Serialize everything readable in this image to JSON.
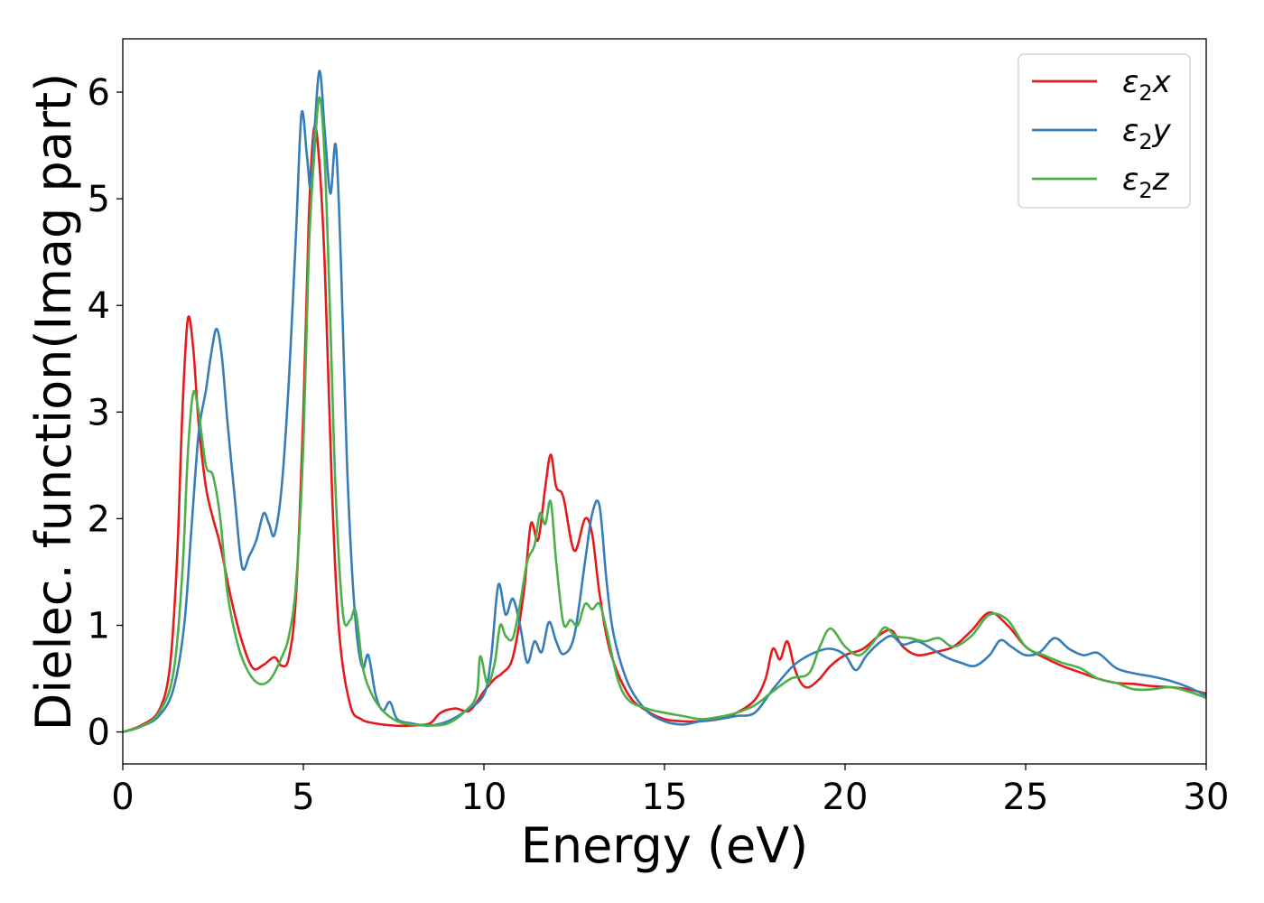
{
  "chart_data": {
    "type": "line",
    "title": "",
    "xlabel": "Energy (eV)",
    "ylabel": "Dielec. function(Imag part)",
    "xlim": [
      0,
      30
    ],
    "ylim": [
      -0.3,
      6.5
    ],
    "xticks": [
      0,
      5,
      10,
      15,
      20,
      25,
      30
    ],
    "yticks": [
      0,
      1,
      2,
      3,
      4,
      5,
      6
    ],
    "xtick_labels": [
      "0",
      "5",
      "10",
      "15",
      "20",
      "25",
      "30"
    ],
    "ytick_labels": [
      "0",
      "1",
      "2",
      "3",
      "4",
      "5",
      "6"
    ],
    "grid": false,
    "legend_position": "top-right",
    "series": [
      {
        "name": "ε2x",
        "legend_base": "ε",
        "legend_sub": "2",
        "legend_var": "x",
        "color": "#e41a1c",
        "x": [
          0,
          0.5,
          1.0,
          1.3,
          1.5,
          1.65,
          1.8,
          1.95,
          2.1,
          2.3,
          2.5,
          2.7,
          3.0,
          3.3,
          3.6,
          3.9,
          4.2,
          4.4,
          4.6,
          4.8,
          5.0,
          5.15,
          5.3,
          5.45,
          5.6,
          5.8,
          6.0,
          6.3,
          6.6,
          7.0,
          7.5,
          8.0,
          8.5,
          8.8,
          9.2,
          9.6,
          10.0,
          10.3,
          10.5,
          10.8,
          11.1,
          11.3,
          11.5,
          11.7,
          11.85,
          12.0,
          12.2,
          12.5,
          12.8,
          13.0,
          13.2,
          13.5,
          14.0,
          14.5,
          15.0,
          15.5,
          16.0,
          16.5,
          17.0,
          17.5,
          17.8,
          18.0,
          18.2,
          18.4,
          18.6,
          18.8,
          19.0,
          19.3,
          19.6,
          20.0,
          20.5,
          21.0,
          21.3,
          21.6,
          22.0,
          22.5,
          23.0,
          23.5,
          24.0,
          24.5,
          25.0,
          25.5,
          26.0,
          26.5,
          27.0,
          27.5,
          28.0,
          28.5,
          29.0,
          29.5,
          30.0
        ],
        "y": [
          0.0,
          0.06,
          0.2,
          0.6,
          1.6,
          3.0,
          3.87,
          3.6,
          2.9,
          2.3,
          2.0,
          1.75,
          1.25,
          0.85,
          0.6,
          0.63,
          0.7,
          0.62,
          0.7,
          1.3,
          3.0,
          4.8,
          5.67,
          5.3,
          4.3,
          2.2,
          0.9,
          0.25,
          0.12,
          0.08,
          0.06,
          0.06,
          0.08,
          0.18,
          0.22,
          0.2,
          0.38,
          0.5,
          0.55,
          0.7,
          1.3,
          1.95,
          1.8,
          2.3,
          2.6,
          2.3,
          2.2,
          1.7,
          2.0,
          1.85,
          1.3,
          0.75,
          0.35,
          0.2,
          0.12,
          0.1,
          0.1,
          0.12,
          0.18,
          0.3,
          0.5,
          0.78,
          0.68,
          0.85,
          0.6,
          0.45,
          0.42,
          0.5,
          0.62,
          0.72,
          0.78,
          0.92,
          0.95,
          0.8,
          0.72,
          0.75,
          0.8,
          0.95,
          1.12,
          1.0,
          0.8,
          0.7,
          0.62,
          0.56,
          0.5,
          0.46,
          0.45,
          0.43,
          0.42,
          0.4,
          0.36
        ]
      },
      {
        "name": "ε2y",
        "legend_base": "ε",
        "legend_sub": "2",
        "legend_var": "y",
        "color": "#377eb8",
        "x": [
          0,
          0.5,
          1.0,
          1.4,
          1.7,
          1.9,
          2.1,
          2.3,
          2.45,
          2.6,
          2.75,
          2.9,
          3.1,
          3.3,
          3.5,
          3.7,
          3.9,
          4.05,
          4.2,
          4.4,
          4.6,
          4.8,
          4.95,
          5.1,
          5.2,
          5.3,
          5.45,
          5.6,
          5.75,
          5.9,
          6.05,
          6.2,
          6.35,
          6.5,
          6.65,
          6.8,
          7.0,
          7.2,
          7.4,
          7.6,
          8.0,
          8.5,
          9.0,
          9.5,
          10.0,
          10.2,
          10.4,
          10.6,
          10.8,
          11.0,
          11.2,
          11.4,
          11.6,
          11.8,
          12.0,
          12.2,
          12.5,
          12.8,
          13.0,
          13.2,
          13.4,
          13.6,
          14.0,
          14.5,
          15.0,
          15.5,
          16.0,
          16.5,
          17.0,
          17.5,
          18.0,
          18.5,
          18.8,
          19.2,
          19.6,
          20.0,
          20.3,
          20.6,
          21.0,
          21.3,
          21.6,
          22.0,
          22.4,
          22.8,
          23.2,
          23.6,
          24.0,
          24.3,
          24.6,
          25.0,
          25.4,
          25.8,
          26.2,
          26.6,
          27.0,
          27.5,
          28.0,
          28.5,
          29.0,
          29.5,
          30.0
        ],
        "y": [
          0.0,
          0.05,
          0.15,
          0.4,
          1.0,
          1.9,
          2.8,
          3.2,
          3.55,
          3.78,
          3.5,
          2.9,
          2.2,
          1.55,
          1.65,
          1.8,
          2.05,
          1.95,
          1.85,
          2.3,
          3.3,
          4.7,
          5.8,
          5.4,
          5.1,
          5.6,
          6.2,
          5.6,
          5.05,
          5.5,
          4.3,
          2.6,
          1.5,
          0.85,
          0.6,
          0.72,
          0.35,
          0.2,
          0.28,
          0.12,
          0.08,
          0.06,
          0.1,
          0.2,
          0.35,
          0.7,
          1.38,
          1.1,
          1.25,
          1.0,
          0.65,
          0.85,
          0.75,
          1.03,
          0.85,
          0.73,
          0.9,
          1.6,
          2.05,
          2.12,
          1.4,
          0.9,
          0.45,
          0.2,
          0.1,
          0.07,
          0.1,
          0.12,
          0.15,
          0.18,
          0.4,
          0.6,
          0.68,
          0.75,
          0.78,
          0.72,
          0.58,
          0.72,
          0.85,
          0.9,
          0.82,
          0.85,
          0.78,
          0.7,
          0.65,
          0.62,
          0.72,
          0.86,
          0.8,
          0.72,
          0.75,
          0.88,
          0.78,
          0.72,
          0.74,
          0.6,
          0.55,
          0.52,
          0.48,
          0.42,
          0.34
        ]
      },
      {
        "name": "ε2z",
        "legend_base": "ε",
        "legend_sub": "2",
        "legend_var": "z",
        "color": "#4daf4a",
        "x": [
          0,
          0.5,
          1.0,
          1.4,
          1.65,
          1.8,
          1.95,
          2.1,
          2.3,
          2.5,
          2.7,
          2.9,
          3.2,
          3.5,
          3.8,
          4.1,
          4.4,
          4.6,
          4.8,
          5.0,
          5.15,
          5.3,
          5.45,
          5.6,
          5.75,
          5.9,
          6.1,
          6.3,
          6.45,
          6.65,
          6.9,
          7.2,
          7.6,
          8.0,
          8.5,
          9.0,
          9.5,
          9.8,
          9.9,
          10.1,
          10.3,
          10.45,
          10.6,
          10.8,
          11.0,
          11.2,
          11.4,
          11.55,
          11.7,
          11.85,
          12.0,
          12.2,
          12.4,
          12.6,
          12.8,
          13.0,
          13.2,
          13.4,
          13.7,
          14.0,
          14.5,
          15.0,
          15.5,
          16.0,
          16.5,
          17.0,
          17.5,
          18.0,
          18.5,
          19.0,
          19.3,
          19.6,
          20.0,
          20.4,
          20.8,
          21.1,
          21.4,
          21.8,
          22.2,
          22.6,
          23.0,
          23.5,
          24.0,
          24.5,
          25.0,
          25.5,
          26.0,
          26.5,
          27.0,
          27.5,
          28.0,
          28.5,
          29.0,
          29.5,
          30.0
        ],
        "y": [
          0.0,
          0.05,
          0.18,
          0.55,
          1.5,
          2.6,
          3.18,
          3.0,
          2.5,
          2.4,
          2.0,
          1.3,
          0.8,
          0.55,
          0.45,
          0.5,
          0.7,
          0.9,
          1.4,
          2.7,
          4.5,
          5.4,
          5.95,
          5.3,
          3.8,
          2.2,
          1.1,
          1.05,
          1.13,
          0.6,
          0.35,
          0.2,
          0.1,
          0.07,
          0.06,
          0.08,
          0.2,
          0.35,
          0.71,
          0.45,
          0.65,
          1.0,
          0.9,
          0.88,
          1.2,
          1.6,
          1.75,
          2.05,
          1.95,
          2.16,
          1.6,
          1.02,
          1.05,
          1.0,
          1.2,
          1.15,
          1.2,
          0.95,
          0.5,
          0.3,
          0.22,
          0.18,
          0.15,
          0.12,
          0.14,
          0.18,
          0.25,
          0.38,
          0.5,
          0.55,
          0.8,
          0.97,
          0.8,
          0.72,
          0.85,
          0.98,
          0.9,
          0.88,
          0.85,
          0.88,
          0.8,
          0.9,
          1.1,
          1.05,
          0.8,
          0.72,
          0.65,
          0.6,
          0.5,
          0.46,
          0.4,
          0.4,
          0.42,
          0.38,
          0.32
        ]
      }
    ]
  }
}
